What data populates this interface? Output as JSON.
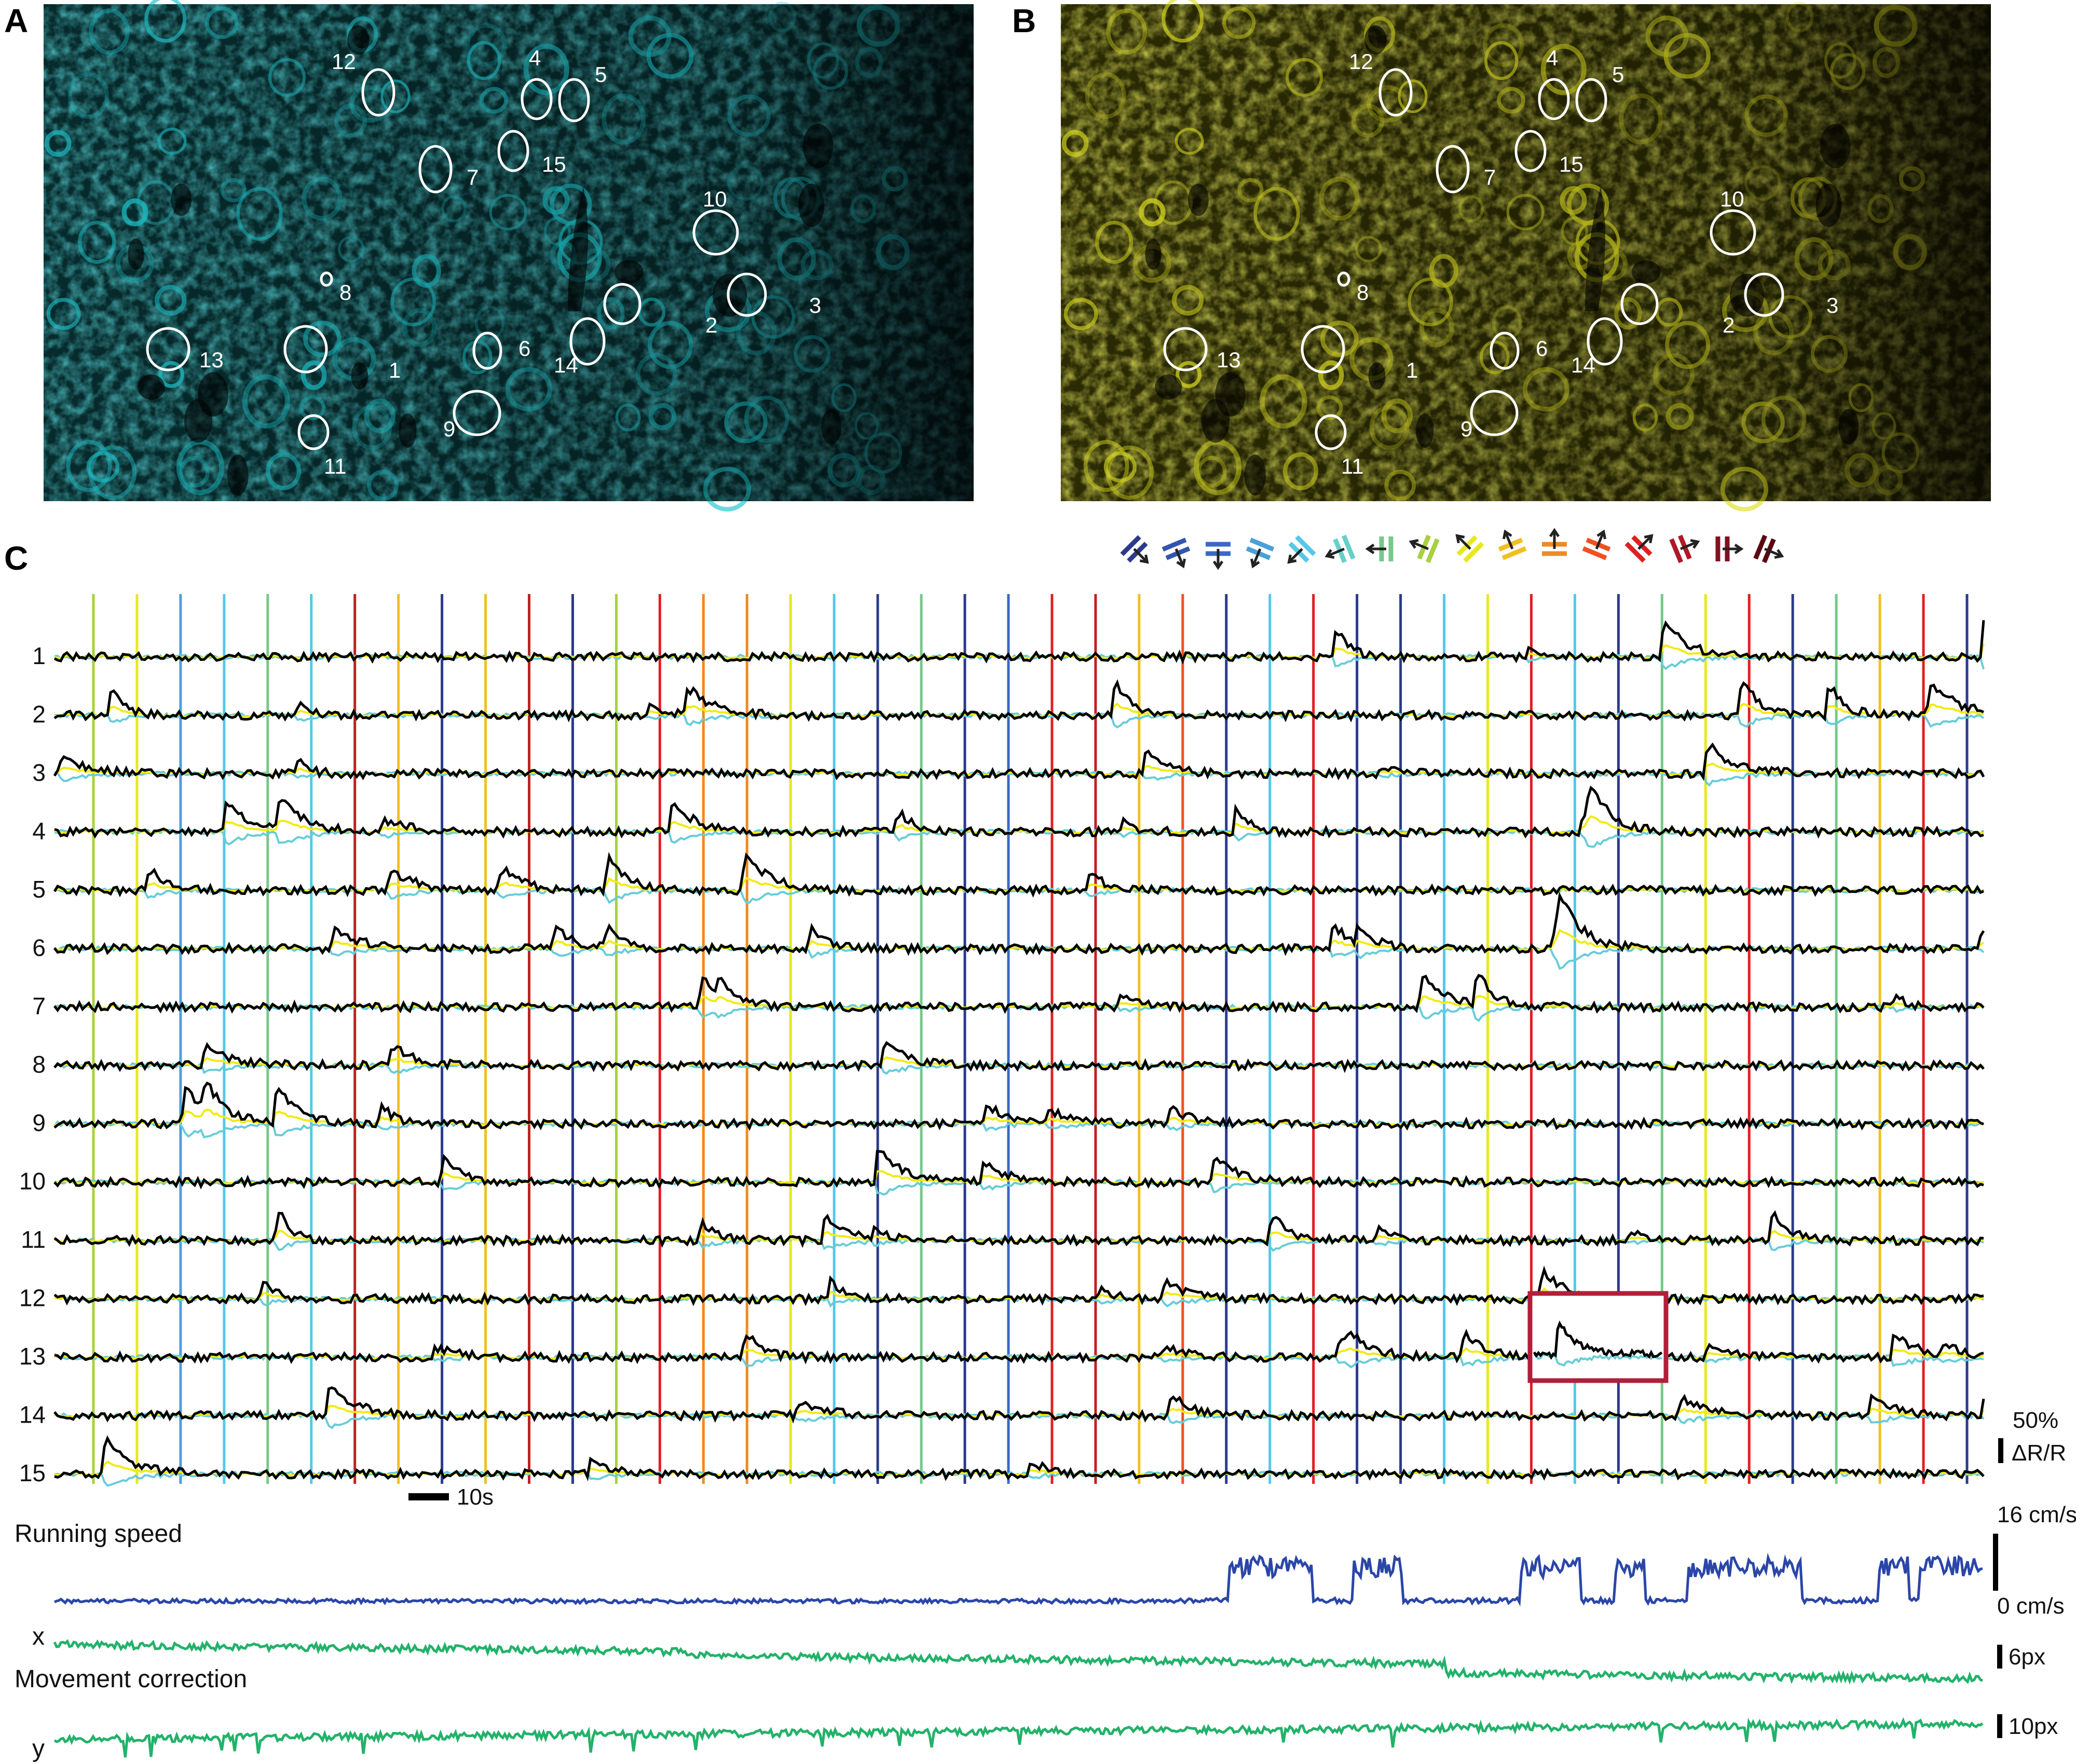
{
  "panels": {
    "a_label": "A",
    "b_label": "B",
    "c_label": "C"
  },
  "micrographs": {
    "a_tint": "#1cc4cc",
    "b_tint": "#dede20",
    "roi_labels": [
      "1",
      "2",
      "3",
      "4",
      "5",
      "6",
      "7",
      "8",
      "9",
      "10",
      "11",
      "12",
      "13",
      "14",
      "15"
    ]
  },
  "stimulus_legend": {
    "direction_colors": [
      "#2b3a8c",
      "#3355b0",
      "#3a68c8",
      "#4aa0d8",
      "#55c8e8",
      "#66d0c8",
      "#77c88a",
      "#a8d040",
      "#e8e820",
      "#f0c020",
      "#f08a20",
      "#f05020",
      "#e02020",
      "#b01828",
      "#801020",
      "#5a0810"
    ]
  },
  "chart_data": {
    "type": "line",
    "panel": "C",
    "row_labels": [
      "1",
      "2",
      "3",
      "4",
      "5",
      "6",
      "7",
      "8",
      "9",
      "10",
      "11",
      "12",
      "13",
      "14",
      "15"
    ],
    "stimulus_onset_colors": [
      "#a8d040",
      "#e8e820",
      "#4aa0d8",
      "#55c8e8",
      "#77c88a",
      "#55c8e8",
      "#c02020",
      "#f0c020",
      "#2b3a8c",
      "#f0c020",
      "#c02020",
      "#2b3a8c",
      "#a8d040",
      "#e02020",
      "#f08a20",
      "#f08a20",
      "#e8e820",
      "#55c8e8",
      "#2b3a8c",
      "#77c88a",
      "#2b3a8c",
      "#3a68c8",
      "#e02020",
      "#c02020",
      "#f0c020",
      "#f05020",
      "#2b3a8c",
      "#55c8e8",
      "#e02020",
      "#2b3a8c",
      "#2b3a8c",
      "#55c8e8",
      "#e8e820",
      "#e02020",
      "#55c8e8",
      "#2b3a8c",
      "#77c88a",
      "#e8e820",
      "#e02020",
      "#2b3a8c",
      "#77c88a",
      "#f0c020",
      "#e02020",
      "#2b3a8c"
    ],
    "trace_colors": {
      "ratio": "#000000",
      "yellow_channel": "#f2ea10",
      "cyan_channel": "#66ccd8"
    },
    "scale_bar_response": {
      "value": "50%",
      "unit": "ΔR/R"
    },
    "scale_bar_time": "10s",
    "running_speed": {
      "label": "Running speed",
      "max_label": "16 cm/s",
      "min_label": "0 cm/s",
      "color": "#2b46a8"
    },
    "movement_correction": {
      "label": "Movement correction",
      "x_label": "x",
      "y_label": "y",
      "x_scale": "6px",
      "y_scale": "10px",
      "color": "#22b26a"
    }
  },
  "highlight_box_color": "#b0203a"
}
